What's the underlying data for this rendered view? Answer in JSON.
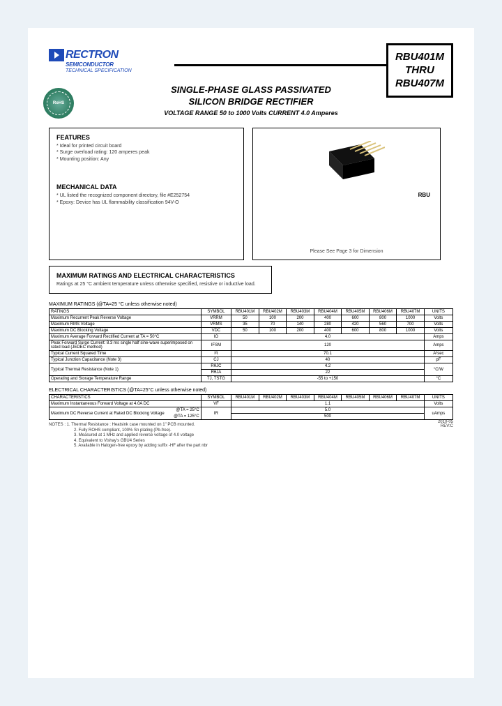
{
  "brand": {
    "name": "RECTRON",
    "sub": "SEMICONDUCTOR",
    "spec": "TECHNICAL SPECIFICATION"
  },
  "part_box": {
    "line1": "RBU401M",
    "line2": "THRU",
    "line3": "RBU407M"
  },
  "title": {
    "line1": "SINGLE-PHASE GLASS PASSIVATED",
    "line2": "SILICON BRIDGE RECTIFIER",
    "sub": "VOLTAGE RANGE 50 to 1000 Volts  CURRENT 4.0 Amperes"
  },
  "features": {
    "head": "FEATURES",
    "items": [
      "* Ideal for printed circuit board",
      "* Surge overload rating: 120 amperes peak",
      "* Mounting position: Any"
    ]
  },
  "mech": {
    "head": "MECHANICAL DATA",
    "items": [
      "* UL listed the recognized component directory, file #E252754",
      "* Epoxy: Device has UL flammability classification 94V-O"
    ]
  },
  "right_box": {
    "text": "Please See Page 3  for Dimension",
    "pkg_label": "RBU"
  },
  "rating_box": {
    "head": "MAXIMUM RATINGS AND ELECTRICAL CHARACTERISTICS",
    "text": "Ratings at 25 °C ambient temperature unless otherwise specified, resistive or inductive load."
  },
  "table1": {
    "caption": "MAXIMUM RATINGS (@TA=25 °C unless otherwise noted)",
    "headers": [
      "RATINGS",
      "SYMBOL",
      "RBU401M",
      "RBU402M",
      "RBU403M",
      "RBU404M",
      "RBU405M",
      "RBU406M",
      "RBU407M",
      "UNITS"
    ],
    "rows": [
      {
        "name": "Maximum Recurrent Peak Reverse Voltage",
        "sym": "VRRM",
        "vals": [
          "50",
          "100",
          "200",
          "400",
          "600",
          "800",
          "1000"
        ],
        "unit": "Volts"
      },
      {
        "name": "Maximum RMS Voltage",
        "sym": "VRMS",
        "vals": [
          "35",
          "70",
          "140",
          "280",
          "420",
          "560",
          "700"
        ],
        "unit": "Volts"
      },
      {
        "name": "Maximum DC Blocking Voltage",
        "sym": "VDC",
        "vals": [
          "50",
          "100",
          "200",
          "400",
          "600",
          "800",
          "1000"
        ],
        "unit": "Volts"
      },
      {
        "name": "Maximum Average Forward Rectified Current at TA = 50°C",
        "sym": "IO",
        "span": "4.0",
        "unit": "Amps"
      },
      {
        "name": "Peak Forward Surge Current: 8.3 ms single half sine-wave superimposed on rated load (JEDEC method)",
        "sym": "IFSM",
        "span": "120",
        "unit": "Amps"
      },
      {
        "name": "Typical Current Squared Time",
        "sym": "I²t",
        "span": "70.1",
        "unit": "A²sec"
      },
      {
        "name": "Typical Junction Capacitance (Note 3)",
        "sym": "CJ",
        "span": "40",
        "unit": "pF"
      },
      {
        "name": "Typical Thermal Resistance (Note 1)",
        "sym": "RθJC",
        "span": "4.2",
        "unit": "°C/W",
        "extra": {
          "sym": "RθJA",
          "span": "22"
        }
      },
      {
        "name": "Operating and Storage Temperature Range",
        "sym": "TJ, TSTG",
        "span": "-55 to +150",
        "unit": "°C"
      }
    ]
  },
  "table2": {
    "caption": "ELECTRICAL CHARACTERISTICS (@TA=25°C unless otherwise noted)",
    "headers": [
      "CHARACTERISTICS",
      "SYMBOL",
      "RBU401M",
      "RBU402M",
      "RBU403M",
      "RBU404M",
      "RBU405M",
      "RBU406M",
      "RBU407M",
      "UNITS"
    ],
    "rows": [
      {
        "name": "Maximum Instantaneous Forward Voltage at 4.0A DC",
        "sym": "VF",
        "span": "1.1",
        "unit": "Volts"
      },
      {
        "name": "Maximum DC Reverse Current at Rated DC Blocking Voltage",
        "cond1": "@TA = 25°C",
        "cond2": "@TA = 125°C",
        "sym": "IR",
        "span1": "5.0",
        "span2": "500",
        "unit": "uAmps"
      }
    ]
  },
  "notes": {
    "head": "NOTES : 1. Thermal Resistance : Heatsink case mounted on 1\" PCB mounted.",
    "lines": [
      "2. Fully ROHS compliant, 100% Sn plating (Pb-free).",
      "3. Measured at 1 MHz and applied reverse voltage of 4.0 voltage",
      "4. Equivalent to Vishay's GBU4 Series",
      "5. Available in Halogen-free epoxy by adding suffix -HF after the part nbr"
    ]
  },
  "rev": {
    "date": "2010-05",
    "rev": "REV:C"
  }
}
